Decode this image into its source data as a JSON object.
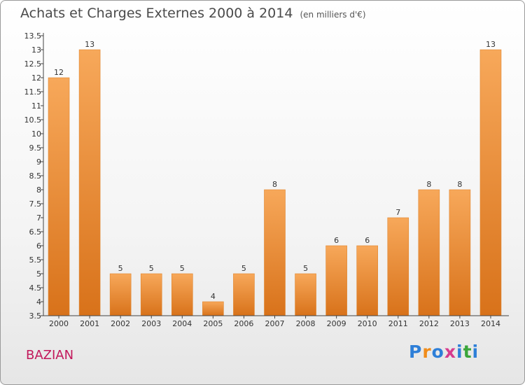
{
  "title": "Achats et Charges Externes 2000 à 2014",
  "unit": "(en milliers d'€)",
  "town": "BAZIAN",
  "logo": {
    "text": "Proxiti",
    "letter_colors": [
      "#2e7fd8",
      "#f08c1a",
      "#2e7fd8",
      "#d63c8e",
      "#2e7fd8",
      "#3aa53a",
      "#2e7fd8"
    ]
  },
  "colors": {
    "bar_light": "#f7a85a",
    "bar_dark": "#d8721a",
    "axis": "#444444"
  },
  "chart_data": {
    "type": "bar",
    "title": "Achats et Charges Externes 2000 à 2014",
    "subtitle": "(en milliers d'€)",
    "xlabel": "",
    "ylabel": "",
    "categories": [
      "2000",
      "2001",
      "2002",
      "2003",
      "2004",
      "2005",
      "2006",
      "2007",
      "2008",
      "2009",
      "2010",
      "2011",
      "2012",
      "2013",
      "2014"
    ],
    "values": [
      12,
      13,
      5,
      5,
      5,
      4,
      5,
      8,
      5,
      6,
      6,
      7,
      8,
      8,
      13
    ],
    "value_labels": [
      "12",
      "13",
      "5",
      "5",
      "5",
      "4",
      "5",
      "8",
      "5",
      "6",
      "6",
      "7",
      "8",
      "8",
      "13"
    ],
    "ylim": [
      3.5,
      13.5
    ],
    "yticks": [
      3.5,
      4,
      4.5,
      5,
      5.5,
      6,
      6.5,
      7,
      7.5,
      8,
      8.5,
      9,
      9.5,
      10,
      10.5,
      11,
      11.5,
      12,
      12.5,
      13,
      13.5
    ],
    "ytick_labels": [
      "3.5",
      "4",
      "4.5",
      "5",
      "5.5",
      "6",
      "6.5",
      "7",
      "7.5",
      "8",
      "8.5",
      "9",
      "9.5",
      "10",
      "10.5",
      "11",
      "11.5",
      "12",
      "12.5",
      "13",
      "13.5"
    ],
    "grid": false
  }
}
